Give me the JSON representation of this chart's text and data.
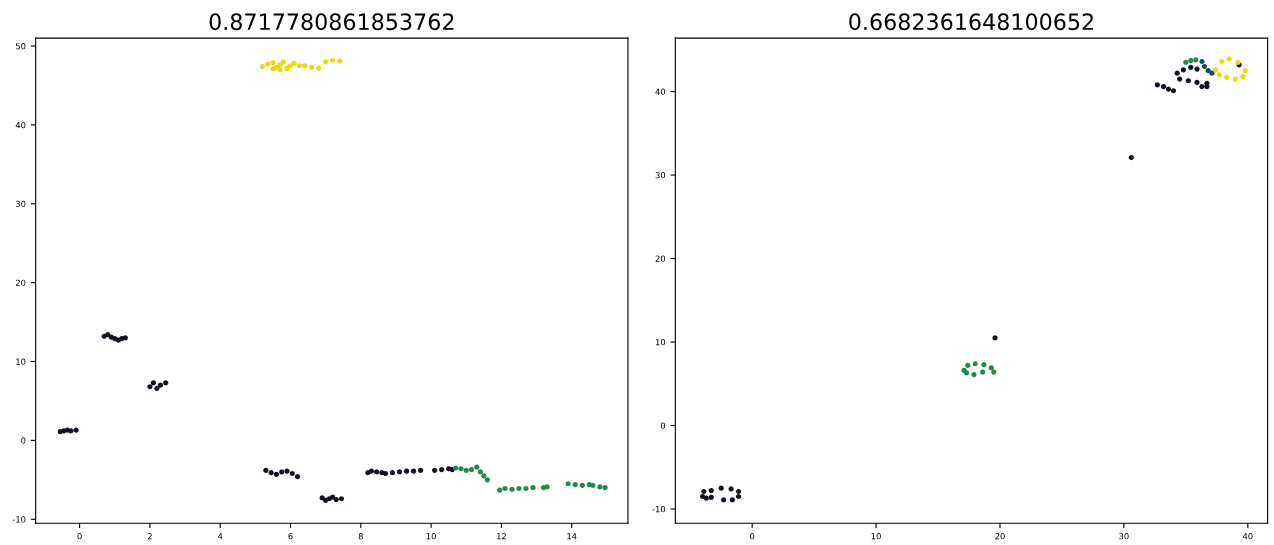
{
  "chart_data": [
    {
      "type": "scatter",
      "title": "0.8717780861853762",
      "marker": "circle",
      "grid": false,
      "xlim": [
        -1.25,
        15.6
      ],
      "ylim": [
        -10.5,
        51
      ],
      "xticks": [
        0,
        2,
        4,
        6,
        8,
        10,
        12,
        14
      ],
      "yticks": [
        -10,
        0,
        10,
        20,
        30,
        40,
        50
      ],
      "series": [
        {
          "color": "#111122",
          "x": [
            -0.55,
            -0.45,
            -0.35,
            -0.25,
            -0.15,
            -0.1,
            0.7,
            0.8,
            0.9,
            1.0,
            1.1,
            1.2,
            1.3,
            2.0,
            2.1,
            2.2,
            2.3,
            2.45,
            5.3,
            5.45,
            5.6,
            5.75,
            5.9,
            6.05,
            6.2,
            6.9,
            7.0,
            7.1,
            7.2,
            7.3,
            7.45,
            8.2,
            8.3,
            8.45,
            8.6,
            8.7,
            8.9,
            9.1,
            9.3,
            9.5,
            9.7,
            10.1,
            10.3,
            10.5,
            10.6
          ],
          "values": [
            1.1,
            1.2,
            1.3,
            1.2,
            null,
            1.3,
            13.2,
            13.4,
            13.1,
            12.9,
            12.7,
            12.9,
            13.0,
            6.8,
            7.3,
            6.6,
            7.0,
            7.3,
            -3.8,
            -4.1,
            -4.3,
            -4.0,
            -3.9,
            -4.2,
            -4.6,
            -7.3,
            -7.6,
            -7.4,
            -7.2,
            -7.5,
            -7.4,
            -4.1,
            -3.9,
            -4.0,
            -4.1,
            -4.2,
            -4.1,
            -4.0,
            -3.9,
            -3.9,
            -3.8,
            -3.8,
            -3.7,
            -3.6,
            -3.7
          ]
        },
        {
          "color": "#1f8a4c",
          "x": [
            10.7,
            10.85,
            11.0,
            11.15,
            11.3,
            11.4,
            11.5,
            11.6,
            11.95,
            12.1,
            12.3,
            12.5,
            12.7,
            12.9,
            13.2,
            13.3,
            13.9,
            14.1,
            14.3,
            14.5,
            14.6,
            14.8,
            14.95
          ],
          "values": [
            -3.5,
            -3.6,
            -3.8,
            -3.7,
            -3.4,
            -4.0,
            -4.5,
            -5.0,
            -6.3,
            -6.1,
            -6.2,
            -6.1,
            -6.1,
            -6.0,
            -6.0,
            -5.9,
            -5.5,
            -5.6,
            -5.7,
            -5.6,
            -5.7,
            -5.9,
            -6.0
          ]
        },
        {
          "color": "#f2d70b",
          "x": [
            5.2,
            5.35,
            5.5,
            5.6,
            5.7,
            5.8,
            5.9,
            6.0,
            6.1,
            6.25,
            5.5,
            5.7,
            5.9,
            6.4,
            6.6,
            6.8,
            7.0,
            7.2,
            7.4
          ],
          "values": [
            47.4,
            47.7,
            47.9,
            47.3,
            47.6,
            48.0,
            47.2,
            47.5,
            47.8,
            47.5,
            47.1,
            47.0,
            47.1,
            47.5,
            47.3,
            47.2,
            48.0,
            48.2,
            48.1
          ]
        }
      ]
    },
    {
      "type": "scatter",
      "title": "0.6682361648100652",
      "marker": "circle",
      "grid": false,
      "xlim": [
        -6.2,
        41.6
      ],
      "ylim": [
        -11.7,
        46.4
      ],
      "xticks": [
        0,
        10,
        20,
        30,
        40
      ],
      "yticks": [
        -10,
        0,
        10,
        20,
        30,
        40
      ],
      "series": [
        {
          "color": "#111122",
          "x": [
            -4.0,
            -3.9,
            -3.3,
            -2.5,
            -1.7,
            -1.1,
            -1.1,
            -1.6,
            -2.3,
            -3.3,
            -3.7,
            19.6,
            30.6,
            32.7,
            33.2,
            33.6,
            34.0,
            34.3,
            34.8,
            35.4,
            35.9,
            34.5,
            35.2,
            35.9,
            36.7,
            36.3,
            36.7,
            39.3
          ],
          "values": [
            -8.5,
            -7.9,
            -7.8,
            -7.5,
            -7.6,
            -7.9,
            -8.5,
            -8.9,
            -8.9,
            -8.6,
            -8.7,
            10.5,
            32.1,
            40.8,
            40.6,
            40.3,
            40.1,
            42.2,
            42.6,
            42.9,
            42.7,
            41.5,
            41.3,
            41.1,
            41.0,
            40.6,
            40.6,
            43.2
          ]
        },
        {
          "color": "#1f8a4c",
          "x": [
            17.1,
            17.4,
            18.0,
            18.7,
            19.3,
            19.5,
            18.6,
            17.9,
            17.3,
            35.0,
            35.4,
            35.8
          ],
          "values": [
            6.6,
            7.2,
            7.4,
            7.3,
            6.9,
            6.4,
            6.4,
            6.1,
            6.3,
            43.5,
            43.7,
            43.8
          ]
        },
        {
          "color": "#0f4d5c",
          "x": [
            36.3,
            36.5,
            36.8,
            37.1
          ],
          "values": [
            43.6,
            43.0,
            42.5,
            42.2
          ]
        },
        {
          "color": "#f2d70b",
          "x": [
            37.4,
            37.9,
            38.5,
            39.2,
            39.8,
            39.6,
            39.0,
            38.3,
            37.7
          ],
          "values": [
            42.6,
            43.6,
            43.9,
            43.5,
            42.5,
            41.8,
            41.5,
            41.7,
            42.0
          ]
        }
      ]
    }
  ]
}
